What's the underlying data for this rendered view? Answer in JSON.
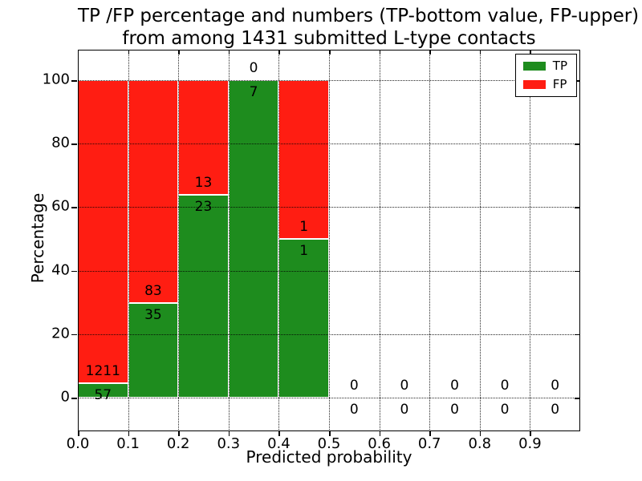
{
  "chart_data": {
    "type": "bar",
    "stacked": true,
    "title": "TP /FP percentage and numbers (TP-bottom value, FP-upper)\nfrom among 1431 submitted L-type contacts",
    "title_lines": {
      "l1": "TP /FP percentage and numbers (TP-bottom value, FP-upper)",
      "l2": "from among 1431 submitted L-type contacts"
    },
    "xlabel": "Predicted probability",
    "ylabel": "Percentage",
    "x_tick_labels": [
      "0.0",
      "0.1",
      "0.2",
      "0.3",
      "0.4",
      "0.5",
      "0.6",
      "0.7",
      "0.8",
      "0.9"
    ],
    "y_tick_labels": [
      "0",
      "20",
      "40",
      "60",
      "80",
      "100"
    ],
    "y_tick_values": [
      0,
      20,
      40,
      60,
      80,
      100
    ],
    "xlim": [
      0.0,
      1.0
    ],
    "grid": "dotted",
    "colors": {
      "tp": "#1e8c1e",
      "fp": "#ff1d12"
    },
    "legend": {
      "position": "upper-right",
      "entries": [
        {
          "label": "TP",
          "color": "#1e8c1e"
        },
        {
          "label": "FP",
          "color": "#ff1d12"
        }
      ]
    },
    "bins": [
      {
        "x_start": 0.0,
        "x_end": 0.1,
        "tp_count": 57,
        "fp_count": 1211,
        "tp_pct": 4.5,
        "fp_pct": 95.5
      },
      {
        "x_start": 0.1,
        "x_end": 0.2,
        "tp_count": 35,
        "fp_count": 83,
        "tp_pct": 29.7,
        "fp_pct": 70.3
      },
      {
        "x_start": 0.2,
        "x_end": 0.3,
        "tp_count": 23,
        "fp_count": 13,
        "tp_pct": 63.9,
        "fp_pct": 36.1
      },
      {
        "x_start": 0.3,
        "x_end": 0.4,
        "tp_count": 7,
        "fp_count": 0,
        "tp_pct": 100,
        "fp_pct": 0
      },
      {
        "x_start": 0.4,
        "x_end": 0.5,
        "tp_count": 1,
        "fp_count": 1,
        "tp_pct": 50,
        "fp_pct": 50
      },
      {
        "x_start": 0.5,
        "x_end": 0.6,
        "tp_count": 0,
        "fp_count": 0,
        "tp_pct": 0,
        "fp_pct": 0
      },
      {
        "x_start": 0.6,
        "x_end": 0.7,
        "tp_count": 0,
        "fp_count": 0,
        "tp_pct": 0,
        "fp_pct": 0
      },
      {
        "x_start": 0.7,
        "x_end": 0.8,
        "tp_count": 0,
        "fp_count": 0,
        "tp_pct": 0,
        "fp_pct": 0
      },
      {
        "x_start": 0.8,
        "x_end": 0.9,
        "tp_count": 0,
        "fp_count": 0,
        "tp_pct": 0,
        "fp_pct": 0
      },
      {
        "x_start": 0.9,
        "x_end": 1.0,
        "tp_count": 0,
        "fp_count": 0,
        "tp_pct": 0,
        "fp_pct": 0
      }
    ]
  }
}
